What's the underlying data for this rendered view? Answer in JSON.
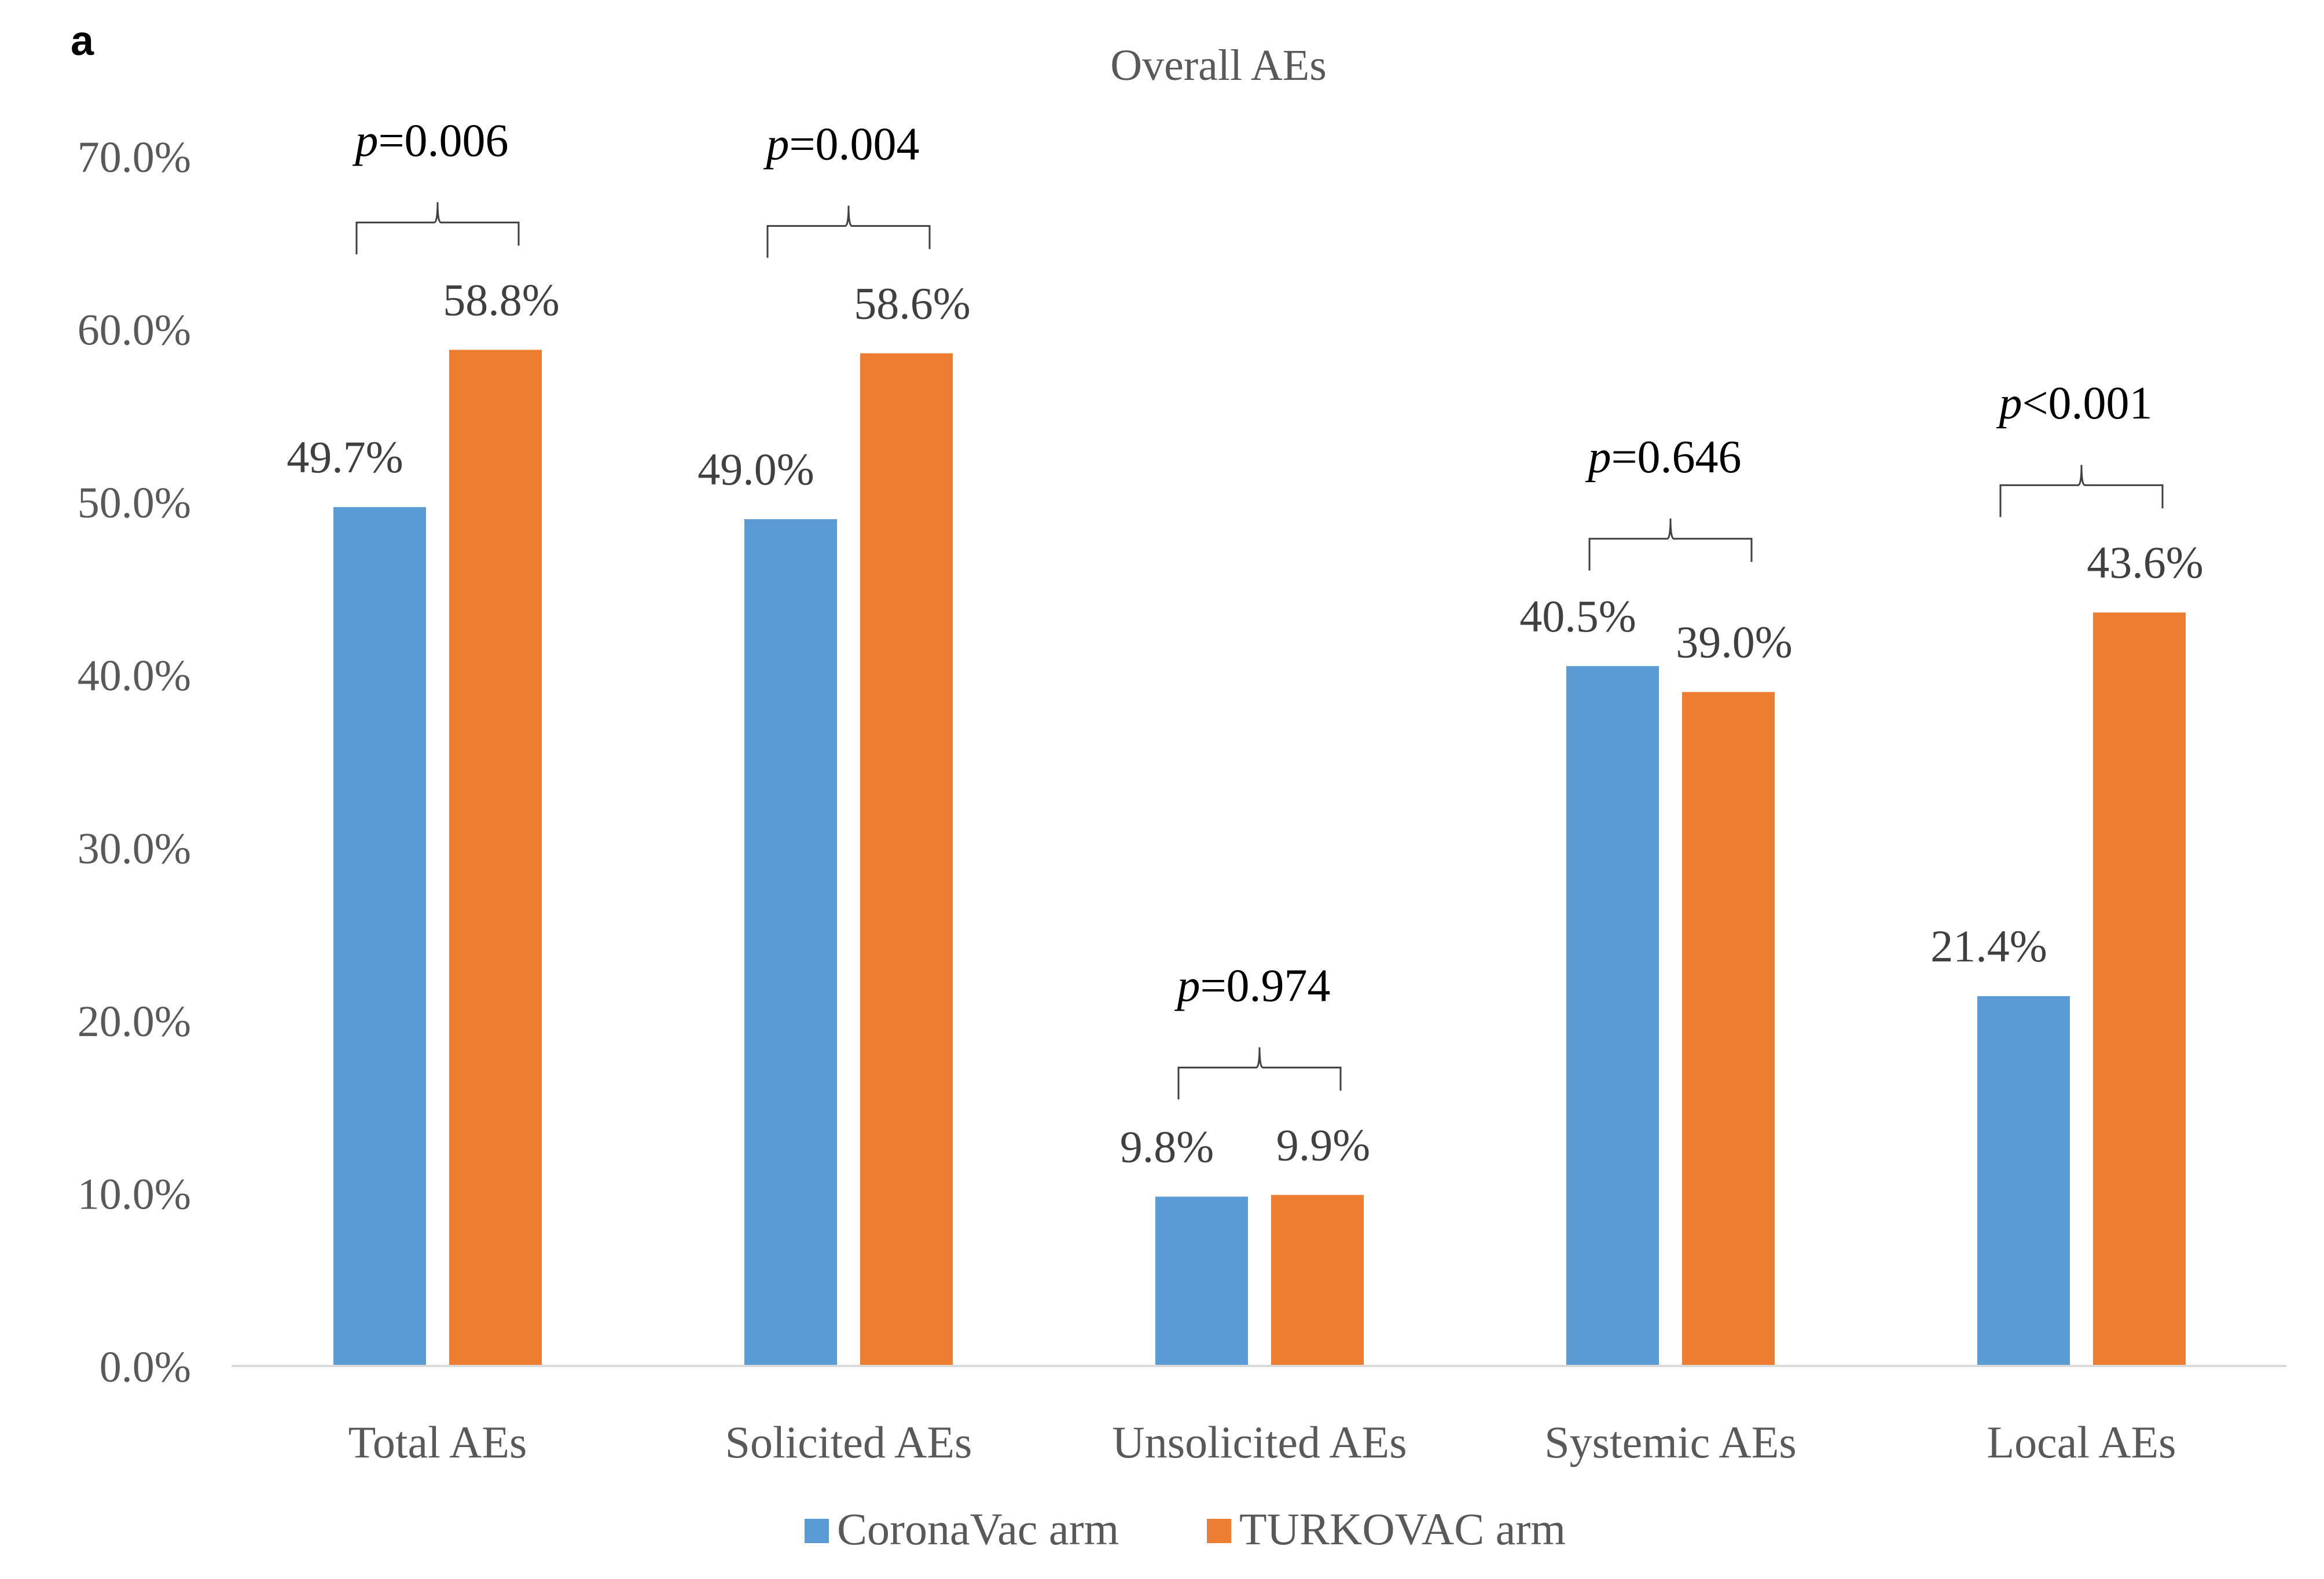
{
  "panel_label": "a",
  "chart_data": {
    "type": "bar",
    "title": "Overall AEs",
    "categories": [
      "Total AEs",
      "Solicited AEs",
      "Unsolicited AEs",
      "Systemic AEs",
      "Local AEs"
    ],
    "series": [
      {
        "name": "CoronaVac arm",
        "color": "#5B9BD5",
        "values": [
          49.7,
          49.0,
          9.8,
          40.5,
          21.4
        ],
        "labels": [
          "49.7%",
          "49.0%",
          "9.8%",
          "40.5%",
          "21.4%"
        ]
      },
      {
        "name": "TURKOVAC arm",
        "color": "#ED7D31",
        "values": [
          58.8,
          58.6,
          9.9,
          39.0,
          43.6
        ],
        "labels": [
          "58.8%",
          "58.6%",
          "9.9%",
          "39.0%",
          "43.6%"
        ]
      }
    ],
    "p_values": [
      {
        "italic": "p",
        "rest": "=0.006"
      },
      {
        "italic": "p",
        "rest": "=0.004"
      },
      {
        "italic": "p",
        "rest": "=0.974"
      },
      {
        "italic": "p",
        "rest": "=0.646"
      },
      {
        "italic": "p",
        "rest": "<0.001"
      }
    ],
    "yticks": [
      "0.0%",
      "10.0%",
      "20.0%",
      "30.0%",
      "40.0%",
      "50.0%",
      "60.0%",
      "70.0%"
    ],
    "ylim": [
      0,
      70
    ],
    "xlabel": "",
    "ylabel": "",
    "grid": false,
    "legend_position": "bottom-center"
  }
}
